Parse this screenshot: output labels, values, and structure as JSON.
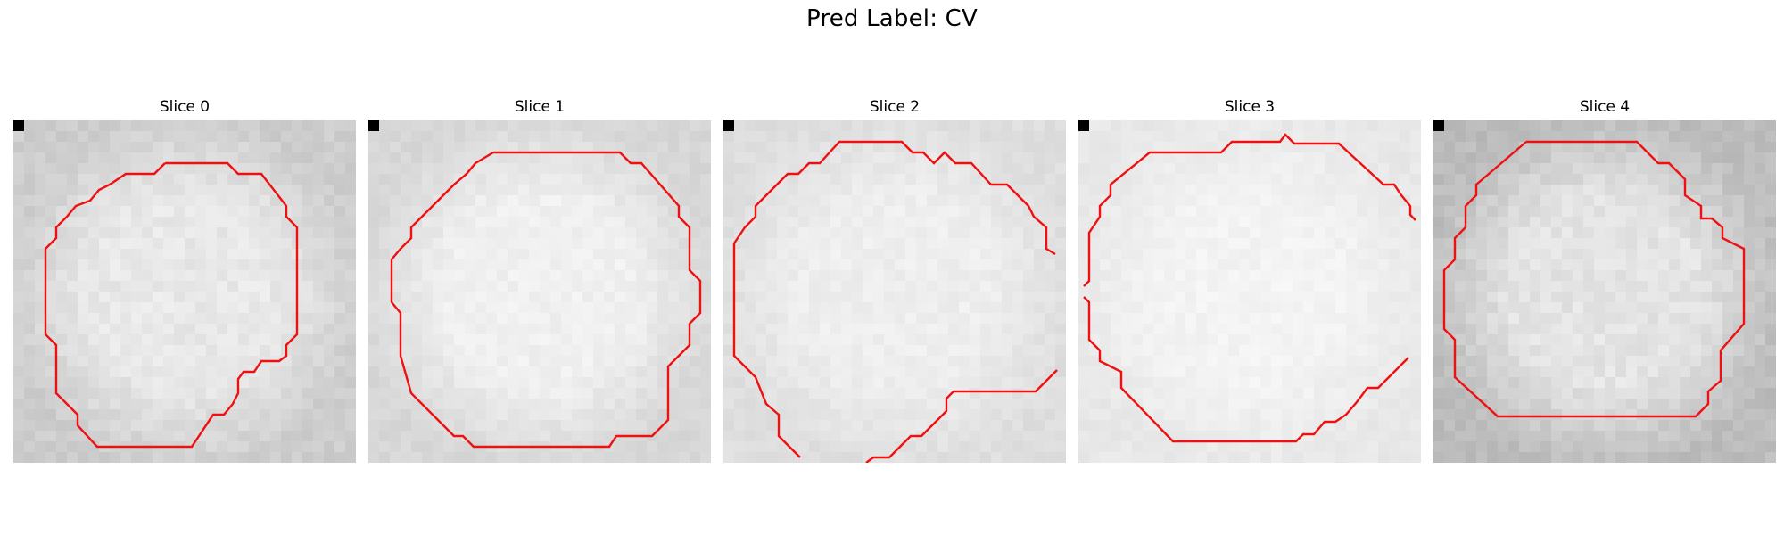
{
  "figure": {
    "title": "Pred Label: CV"
  },
  "panels": [
    {
      "title": "Slice 0"
    },
    {
      "title": "Slice 1"
    },
    {
      "title": "Slice 2"
    },
    {
      "title": "Slice 3"
    },
    {
      "title": "Slice 4"
    }
  ],
  "style": {
    "contour_color": "#ee1111",
    "marker_color": "#000000",
    "background_color": "#ffffff"
  }
}
